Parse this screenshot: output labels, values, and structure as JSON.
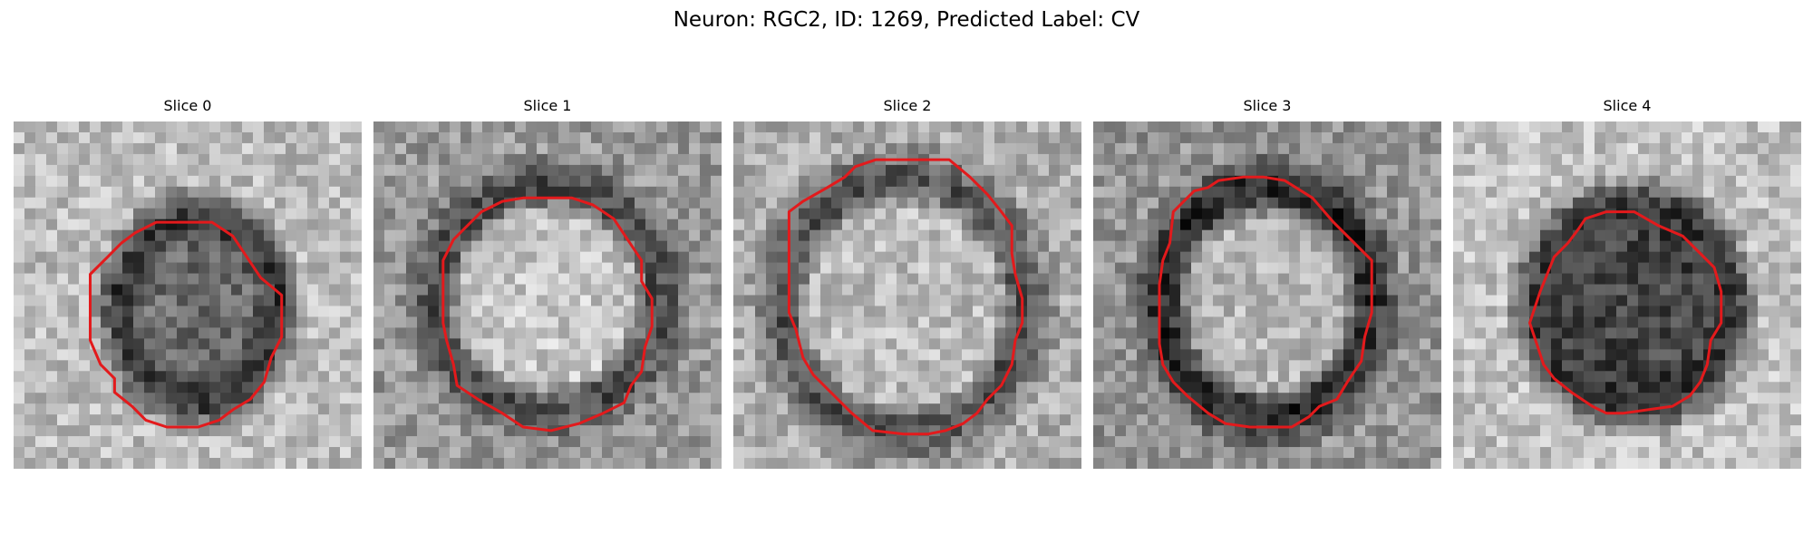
{
  "figure": {
    "title": "Neuron: RGC2, ID: 1269, Predicted Label: CV"
  },
  "colors": {
    "contour": "#e31a1c",
    "background": "#ffffff"
  },
  "panels": [
    {
      "title": "Slice 0"
    },
    {
      "title": "Slice 1"
    },
    {
      "title": "Slice 2"
    },
    {
      "title": "Slice 3"
    },
    {
      "title": "Slice 4"
    }
  ]
}
